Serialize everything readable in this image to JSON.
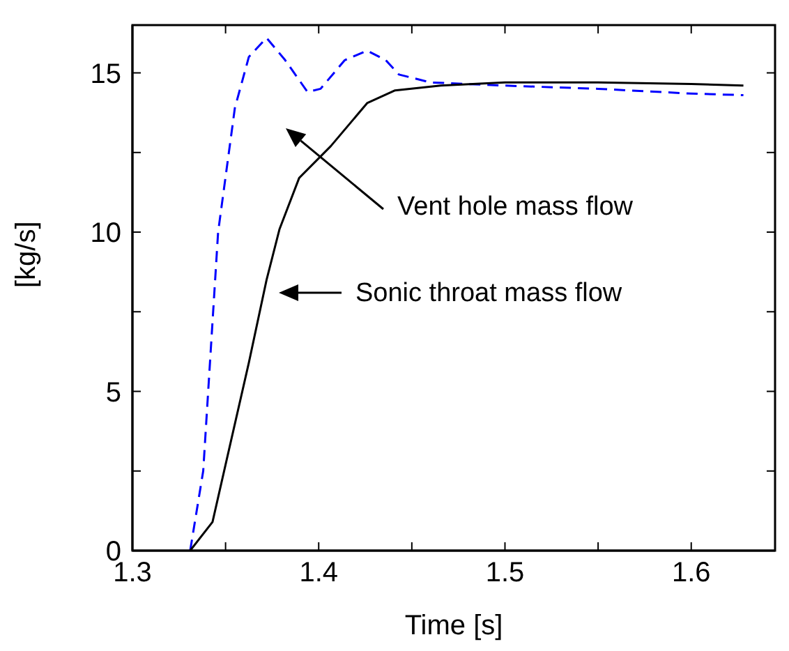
{
  "chart_data": {
    "type": "line",
    "xlabel": "Time [s]",
    "ylabel": "[kg/s]",
    "xlim": [
      1.3,
      1.645
    ],
    "ylim": [
      0,
      16.5
    ],
    "xticks": [
      1.3,
      {
        "value": 1.35,
        "label": null
      },
      1.4,
      {
        "value": 1.45,
        "label": null
      },
      1.5,
      {
        "value": 1.55,
        "label": null
      },
      1.6
    ],
    "yticks": [
      0,
      {
        "value": 2.5,
        "label": null
      },
      5,
      {
        "value": 7.5,
        "label": null
      },
      10,
      {
        "value": 12.5,
        "label": null
      },
      15
    ],
    "grid": false,
    "legend": false,
    "series": [
      {
        "color": "#0000ff",
        "line_style": "dashed",
        "x": [
          1.331,
          1.338,
          1.346,
          1.355,
          1.3625,
          1.372,
          1.382,
          1.394,
          1.401,
          1.414,
          1.426,
          1.436,
          1.443,
          1.46,
          1.5,
          1.55,
          1.6,
          1.628
        ],
        "values": [
          0,
          2.5,
          10,
          13.9,
          15.5,
          16.1,
          15.4,
          14.4,
          14.5,
          15.4,
          15.7,
          15.4,
          14.95,
          14.7,
          14.6,
          14.5,
          14.35,
          14.3
        ]
      },
      {
        "color": "#000000",
        "line_style": "solid",
        "x": [
          1.331,
          1.343,
          1.35,
          1.3625,
          1.372,
          1.379,
          1.3895,
          1.4065,
          1.426,
          1.441,
          1.4655,
          1.5,
          1.55,
          1.6,
          1.628
        ],
        "values": [
          0,
          0.9,
          2.7,
          5.9,
          8.5,
          10.1,
          11.7,
          12.7,
          14.05,
          14.45,
          14.6,
          14.7,
          14.7,
          14.65,
          14.6
        ]
      }
    ],
    "annotations": [
      "Vent hole mass flow",
      "Sonic throat mass flow"
    ]
  }
}
